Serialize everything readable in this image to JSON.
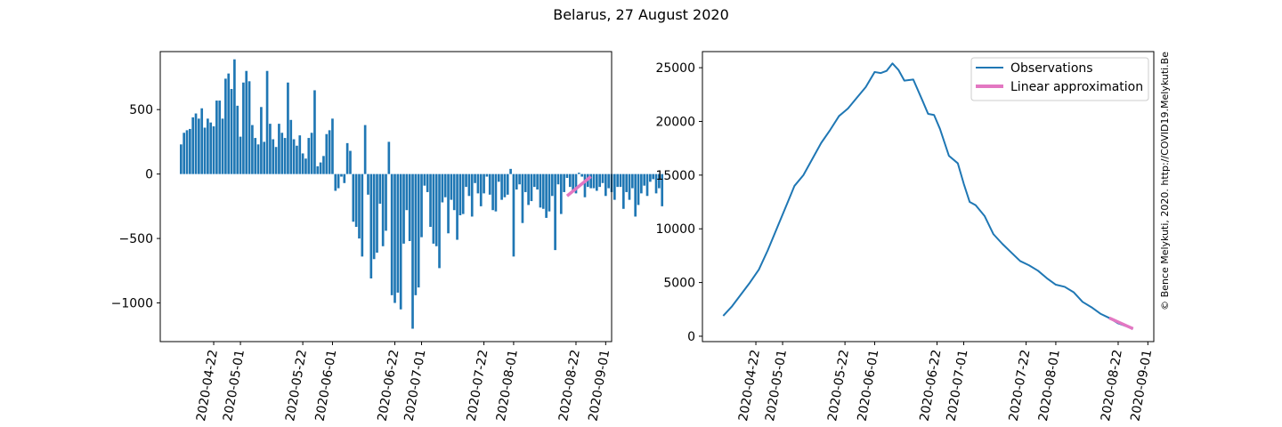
{
  "figure": {
    "suptitle": "Belarus, 27 August 2020",
    "watermark": "© Bence Melykuti, 2020. http://COVID19.Melykuti.Be"
  },
  "colors": {
    "bar": "#1f77b4",
    "line": "#1f77b4",
    "approx": "#e377c2",
    "watermark": "#c8c8c8"
  },
  "chart_data": [
    {
      "type": "bar",
      "title": "",
      "xlabel": "",
      "ylabel": "",
      "x_start": "2020-04-11",
      "x_end": "2020-08-27",
      "xlim": [
        "2020-04-04",
        "2020-09-03"
      ],
      "ylim": [
        -1300,
        950
      ],
      "yticks": [
        -1000,
        -500,
        0,
        500
      ],
      "ytick_labels": [
        "−1000",
        "−500",
        "0",
        "500"
      ],
      "xticks": [
        "2020-04-22",
        "2020-05-01",
        "2020-05-22",
        "2020-06-01",
        "2020-06-22",
        "2020-07-01",
        "2020-07-22",
        "2020-08-01",
        "2020-08-22",
        "2020-09-01"
      ],
      "grid": false,
      "values": [
        230,
        320,
        340,
        350,
        440,
        470,
        430,
        510,
        360,
        430,
        400,
        370,
        570,
        570,
        430,
        740,
        780,
        660,
        890,
        530,
        290,
        710,
        800,
        720,
        380,
        280,
        230,
        520,
        250,
        800,
        390,
        270,
        210,
        390,
        320,
        280,
        710,
        420,
        270,
        220,
        300,
        160,
        120,
        280,
        320,
        650,
        60,
        90,
        140,
        310,
        340,
        430,
        -130,
        -110,
        -20,
        -70,
        240,
        180,
        -370,
        -410,
        -500,
        -640,
        380,
        -160,
        -810,
        -660,
        -610,
        -230,
        -560,
        -440,
        250,
        -940,
        -1000,
        -920,
        -1050,
        -540,
        -280,
        -520,
        -1200,
        -940,
        -880,
        -490,
        -90,
        -140,
        -410,
        -540,
        -560,
        -730,
        -220,
        -180,
        -460,
        -200,
        -280,
        -510,
        -320,
        -310,
        -100,
        -170,
        -330,
        -70,
        -150,
        -250,
        -150,
        -20,
        -160,
        -280,
        -290,
        -60,
        -200,
        -180,
        -160,
        40,
        -640,
        -120,
        -80,
        -380,
        -140,
        -240,
        -210,
        -100,
        -120,
        -260,
        -270,
        -340,
        -290,
        -170,
        -590,
        -80,
        -310,
        -140,
        -30,
        -100,
        -140,
        -150,
        10,
        -20,
        -180,
        -100,
        -110,
        -110,
        -130,
        -100,
        -70,
        -170,
        -110,
        -140,
        -200,
        -100,
        -100,
        -270,
        -140,
        -200,
        -110,
        -330,
        -240,
        -150,
        -90,
        -170,
        -60,
        -40,
        -150,
        -110,
        -250
      ],
      "series": [
        {
          "name": "Linear approximation",
          "x": [
            "2020-08-19",
            "2020-08-27"
          ],
          "y": [
            -170,
            -20
          ]
        }
      ]
    },
    {
      "type": "line",
      "title": "",
      "xlabel": "",
      "ylabel": "",
      "xlim": [
        "2020-04-04",
        "2020-09-03"
      ],
      "ylim": [
        -500,
        26500
      ],
      "yticks": [
        0,
        5000,
        10000,
        15000,
        20000,
        25000
      ],
      "xticks": [
        "2020-04-22",
        "2020-05-01",
        "2020-05-22",
        "2020-06-01",
        "2020-06-22",
        "2020-07-01",
        "2020-07-22",
        "2020-08-01",
        "2020-08-22",
        "2020-09-01"
      ],
      "grid": false,
      "legend_position": "top-right",
      "series": [
        {
          "name": "Observations",
          "x": [
            "2020-04-11",
            "2020-04-14",
            "2020-04-17",
            "2020-04-20",
            "2020-04-23",
            "2020-04-26",
            "2020-04-29",
            "2020-05-02",
            "2020-05-05",
            "2020-05-08",
            "2020-05-11",
            "2020-05-14",
            "2020-05-17",
            "2020-05-20",
            "2020-05-23",
            "2020-05-26",
            "2020-05-29",
            "2020-06-01",
            "2020-06-03",
            "2020-06-05",
            "2020-06-07",
            "2020-06-09",
            "2020-06-11",
            "2020-06-14",
            "2020-06-17",
            "2020-06-19",
            "2020-06-21",
            "2020-06-23",
            "2020-06-26",
            "2020-06-29",
            "2020-07-01",
            "2020-07-03",
            "2020-07-05",
            "2020-07-08",
            "2020-07-11",
            "2020-07-14",
            "2020-07-17",
            "2020-07-20",
            "2020-07-23",
            "2020-07-26",
            "2020-07-29",
            "2020-08-01",
            "2020-08-04",
            "2020-08-07",
            "2020-08-10",
            "2020-08-13",
            "2020-08-16",
            "2020-08-19",
            "2020-08-22",
            "2020-08-25",
            "2020-08-27"
          ],
          "y": [
            1900,
            2800,
            3900,
            5000,
            6200,
            8000,
            10000,
            12000,
            14000,
            15000,
            16500,
            18000,
            19200,
            20500,
            21200,
            22200,
            23200,
            24600,
            24500,
            24700,
            25400,
            24800,
            23800,
            23900,
            22000,
            20700,
            20600,
            19300,
            16800,
            16100,
            14200,
            12500,
            12200,
            11200,
            9500,
            8600,
            7800,
            7000,
            6600,
            6100,
            5400,
            4800,
            4600,
            4100,
            3200,
            2700,
            2100,
            1700,
            1200,
            900,
            700
          ]
        },
        {
          "name": "Linear approximation",
          "x": [
            "2020-08-19",
            "2020-08-27"
          ],
          "y": [
            1700,
            700
          ]
        }
      ]
    }
  ]
}
